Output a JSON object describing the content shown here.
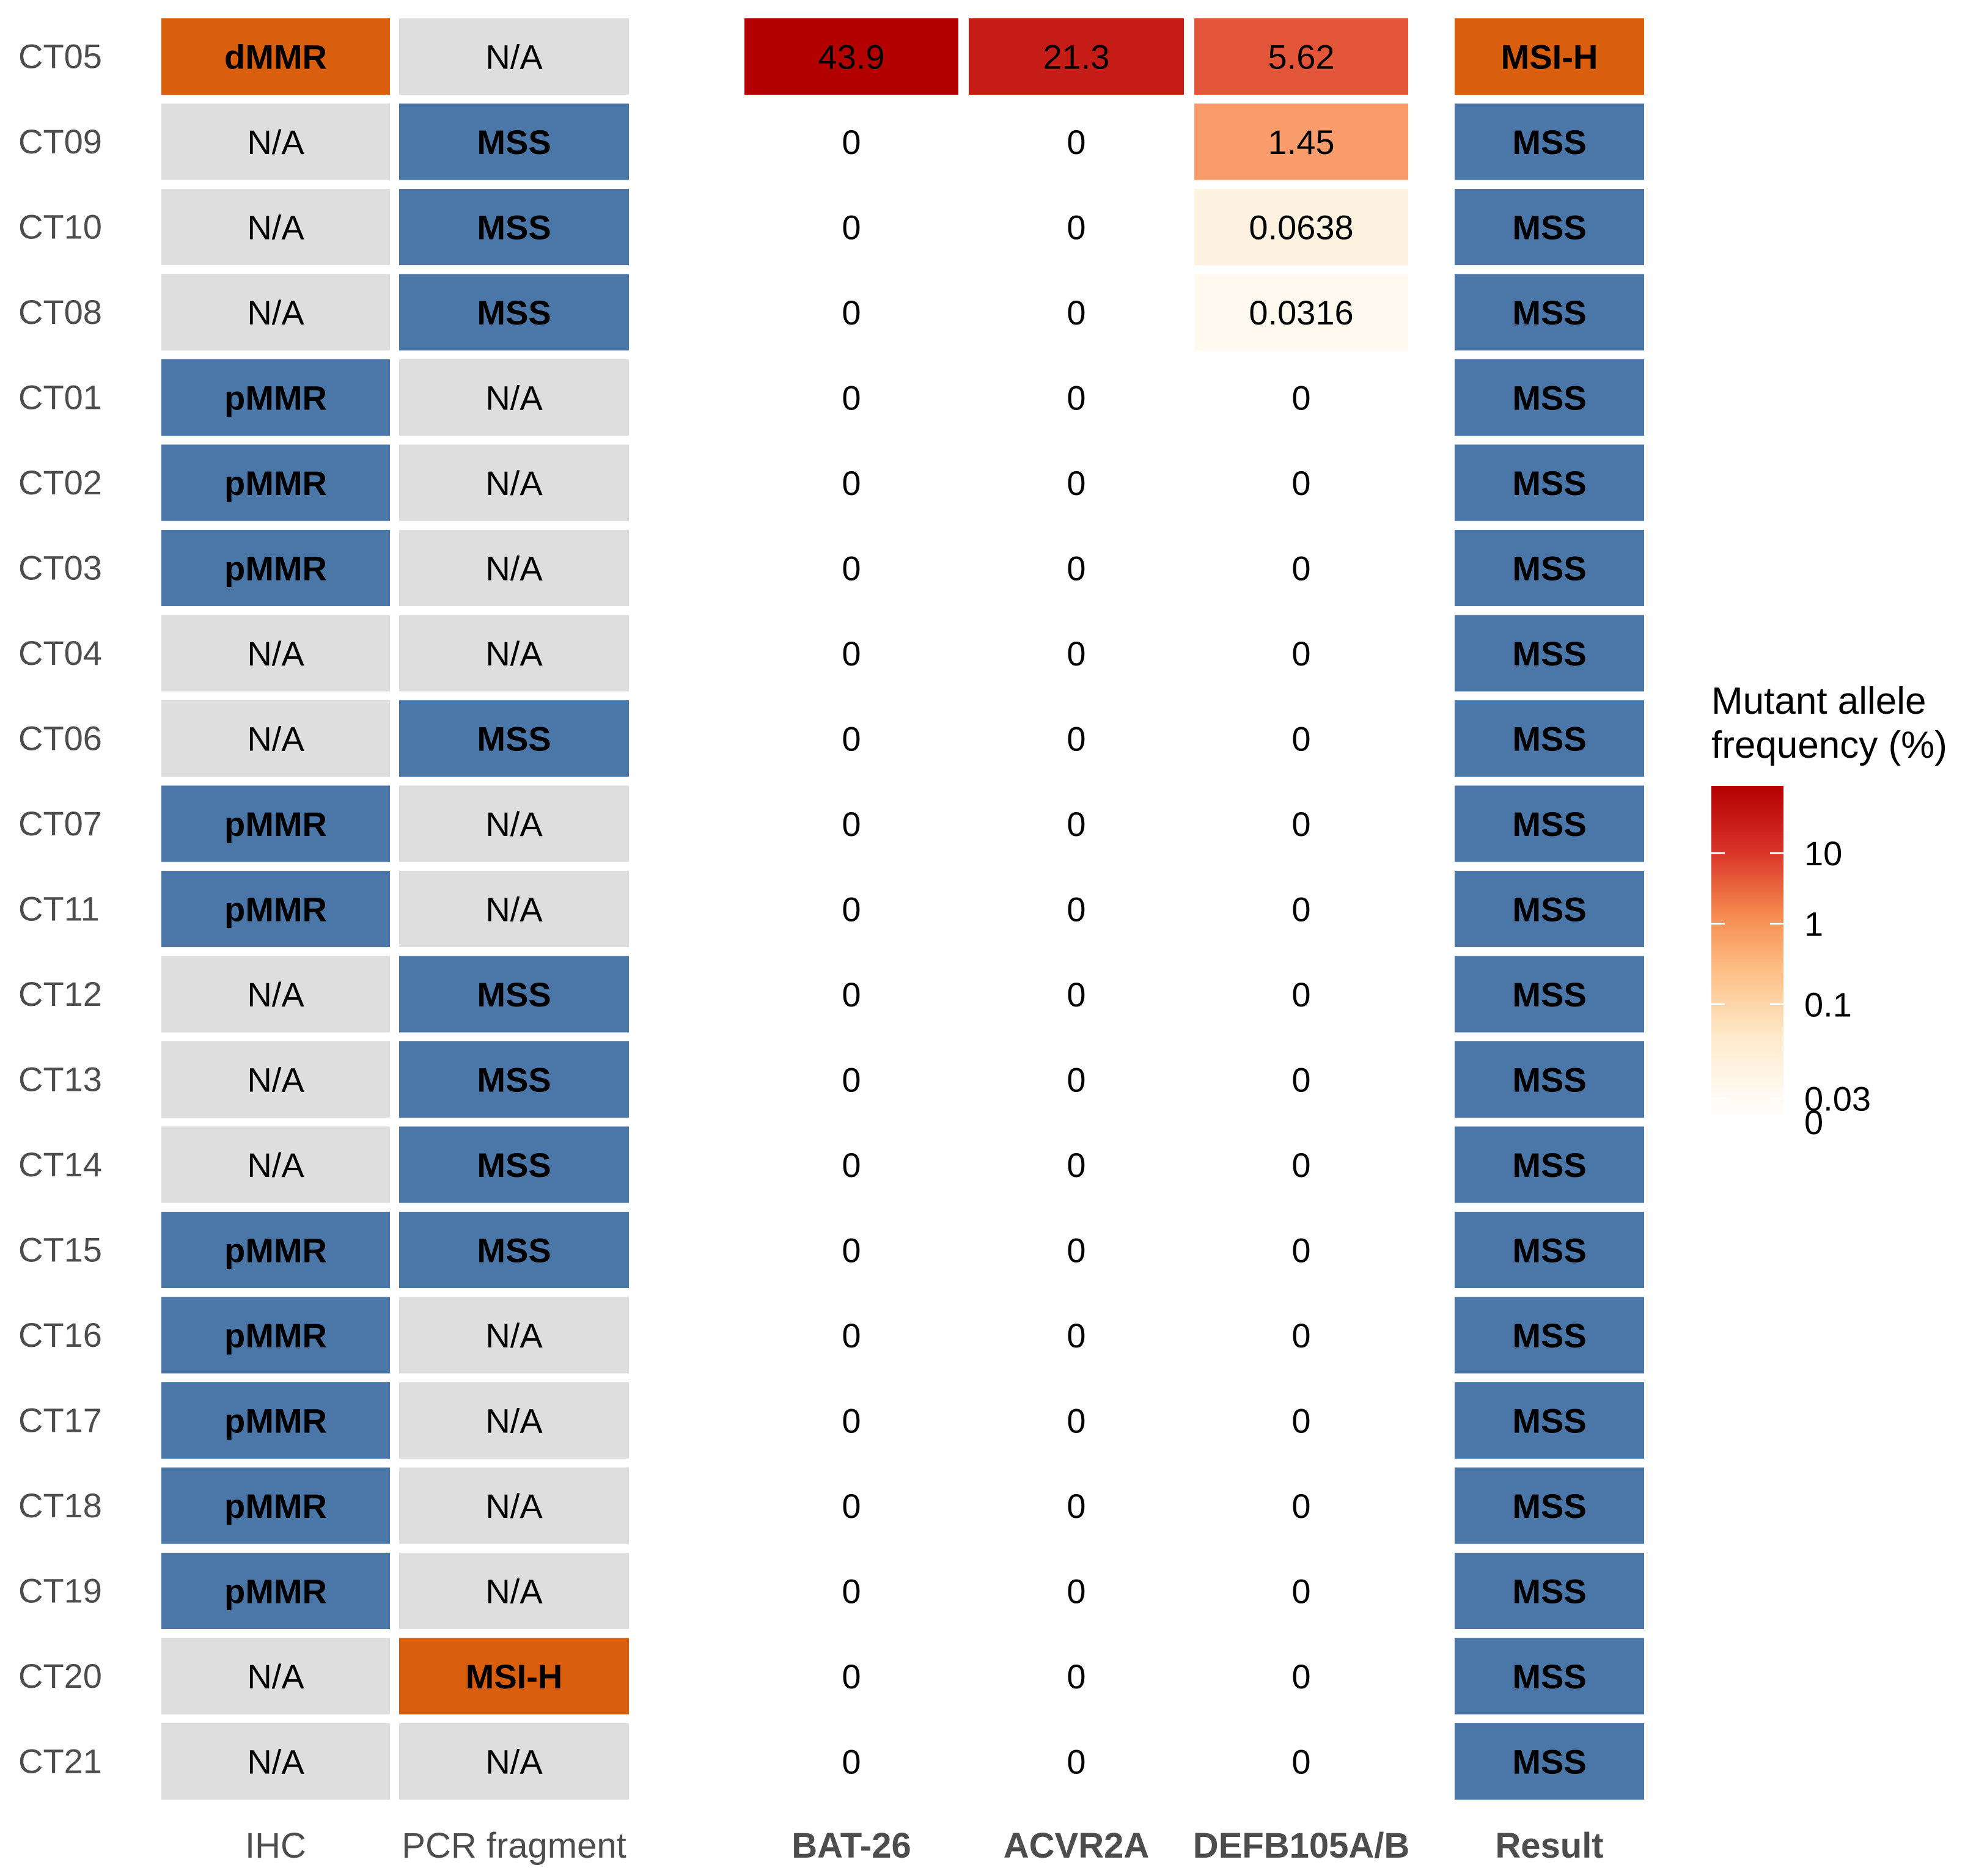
{
  "chart_data": {
    "type": "heatmap",
    "rows": [
      "CT05",
      "CT09",
      "CT10",
      "CT08",
      "CT01",
      "CT02",
      "CT03",
      "CT04",
      "CT06",
      "CT07",
      "CT11",
      "CT12",
      "CT13",
      "CT14",
      "CT15",
      "CT16",
      "CT17",
      "CT18",
      "CT19",
      "CT20",
      "CT21"
    ],
    "columns": {
      "IHC": [
        "dMMR",
        "N/A",
        "N/A",
        "N/A",
        "pMMR",
        "pMMR",
        "pMMR",
        "N/A",
        "N/A",
        "pMMR",
        "pMMR",
        "N/A",
        "N/A",
        "N/A",
        "pMMR",
        "pMMR",
        "pMMR",
        "pMMR",
        "pMMR",
        "N/A",
        "N/A"
      ],
      "PCR fragment": [
        "N/A",
        "MSS",
        "MSS",
        "MSS",
        "N/A",
        "N/A",
        "N/A",
        "N/A",
        "MSS",
        "N/A",
        "N/A",
        "MSS",
        "MSS",
        "MSS",
        "MSS",
        "N/A",
        "N/A",
        "N/A",
        "N/A",
        "MSI-H",
        "N/A"
      ],
      "BAT-26": [
        "43.9",
        "0",
        "0",
        "0",
        "0",
        "0",
        "0",
        "0",
        "0",
        "0",
        "0",
        "0",
        "0",
        "0",
        "0",
        "0",
        "0",
        "0",
        "0",
        "0",
        "0"
      ],
      "ACVR2A": [
        "21.3",
        "0",
        "0",
        "0",
        "0",
        "0",
        "0",
        "0",
        "0",
        "0",
        "0",
        "0",
        "0",
        "0",
        "0",
        "0",
        "0",
        "0",
        "0",
        "0",
        "0"
      ],
      "DEFB105A/B": [
        "5.62",
        "1.45",
        "0.0638",
        "0.0316",
        "0",
        "0",
        "0",
        "0",
        "0",
        "0",
        "0",
        "0",
        "0",
        "0",
        "0",
        "0",
        "0",
        "0",
        "0",
        "0",
        "0"
      ],
      "Result": [
        "MSI-H",
        "MSS",
        "MSS",
        "MSS",
        "MSS",
        "MSS",
        "MSS",
        "MSS",
        "MSS",
        "MSS",
        "MSS",
        "MSS",
        "MSS",
        "MSS",
        "MSS",
        "MSS",
        "MSS",
        "MSS",
        "MSS",
        "MSS",
        "MSS"
      ]
    },
    "column_labels": [
      "IHC",
      "PCR fragment",
      "BAT-26",
      "ACVR2A",
      "DEFB105A/B",
      "Result"
    ],
    "category_colors": {
      "dMMR": "#d95f0e",
      "MSI-H": "#d95f0e",
      "pMMR": "#4a77a8",
      "MSS": "#4a77a8",
      "N/A": "#dedede"
    },
    "legend": {
      "title_line1": "Mutant allele",
      "title_line2": "frequency (%)",
      "ticks": [
        "10",
        "1",
        "0.1",
        "0.03",
        "0"
      ],
      "scale": "log",
      "colors": [
        "#ffffff",
        "#fff1e0",
        "#fdae6b",
        "#e34a33",
        "#b30000"
      ]
    }
  }
}
